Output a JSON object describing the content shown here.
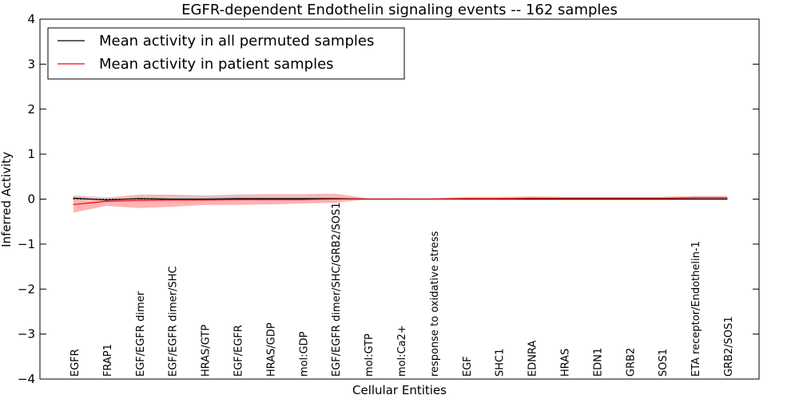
{
  "chart_data": {
    "type": "line",
    "title": "EGFR-dependent Endothelin signaling events -- 162 samples",
    "xlabel": "Cellular Entities",
    "ylabel": "Inferred Activity",
    "ylim": [
      -4,
      4
    ],
    "yticks": [
      4,
      3,
      2,
      1,
      0,
      -1,
      -2,
      -3,
      -4
    ],
    "ytick_labels": [
      "4",
      "3",
      "2",
      "1",
      "0",
      "−1",
      "−2",
      "−3",
      "−4"
    ],
    "grid": false,
    "legend_position": "top-left",
    "categories": [
      "EGFR",
      "FRAP1",
      "EGF/EGFR dimer",
      "EGF/EGFR dimer/SHC",
      "HRAS/GTP",
      "EGF/EGFR",
      "HRAS/GDP",
      "mol:GDP",
      "EGF/EGFR dimer/SHC/GRB2/SOS1",
      "mol:GTP",
      "mol:Ca2+",
      "response to oxidative stress",
      "EGF",
      "SHC1",
      "EDNRA",
      "HRAS",
      "EDN1",
      "GRB2",
      "SOS1",
      "ETA receptor/Endothelin-1",
      "GRB2/SOS1"
    ],
    "series": [
      {
        "name": "Mean activity in all permuted samples",
        "color": "#000000",
        "values": [
          0.02,
          -0.02,
          0.01,
          0.0,
          0.0,
          0.01,
          0.01,
          0.01,
          0.01,
          0.0,
          0.0,
          0.0,
          0.0,
          0.0,
          0.0,
          0.0,
          0.0,
          0.0,
          0.0,
          0.0,
          0.0
        ],
        "band_low": [
          -0.01,
          -0.04,
          -0.02,
          -0.02,
          -0.02,
          -0.02,
          -0.02,
          -0.02,
          -0.02,
          -0.01,
          -0.01,
          -0.01,
          -0.01,
          -0.01,
          -0.01,
          -0.01,
          -0.01,
          -0.01,
          -0.01,
          -0.01,
          -0.01
        ],
        "band_high": [
          0.08,
          0.04,
          0.07,
          0.07,
          0.07,
          0.08,
          0.08,
          0.08,
          0.08,
          0.02,
          0.02,
          0.02,
          0.04,
          0.04,
          0.04,
          0.04,
          0.04,
          0.04,
          0.04,
          0.05,
          0.05
        ]
      },
      {
        "name": "Mean activity in patient samples",
        "color": "#ff0000",
        "values": [
          -0.12,
          -0.05,
          -0.03,
          -0.02,
          -0.02,
          -0.01,
          -0.01,
          -0.01,
          0.0,
          0.0,
          0.0,
          0.0,
          0.01,
          0.01,
          0.02,
          0.02,
          0.02,
          0.02,
          0.02,
          0.03,
          0.03
        ],
        "band_low": [
          -0.3,
          -0.15,
          -0.2,
          -0.17,
          -0.13,
          -0.13,
          -0.12,
          -0.1,
          -0.08,
          -0.01,
          -0.01,
          -0.01,
          -0.01,
          -0.01,
          -0.01,
          -0.01,
          -0.01,
          -0.01,
          -0.01,
          0.0,
          0.0
        ],
        "band_high": [
          0.08,
          0.03,
          0.1,
          0.1,
          0.08,
          0.1,
          0.11,
          0.11,
          0.12,
          0.02,
          0.02,
          0.02,
          0.05,
          0.05,
          0.06,
          0.05,
          0.05,
          0.05,
          0.05,
          0.07,
          0.07
        ]
      }
    ]
  },
  "colors": {
    "patient_band": "#ff9999",
    "permuted_band": "#cccccc"
  }
}
